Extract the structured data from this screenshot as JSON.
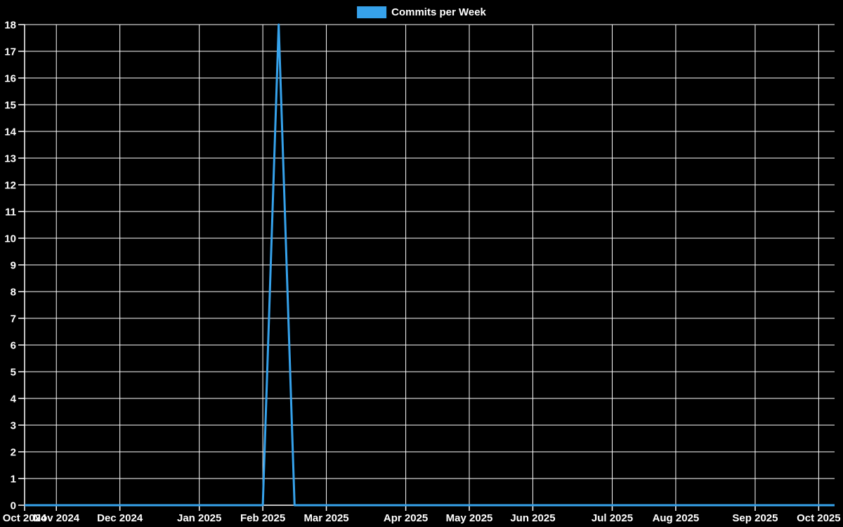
{
  "page": {
    "background_color": "#000000",
    "text_color": "#ffffff"
  },
  "legend": {
    "label": "Commits per Week",
    "swatch_color": "#36a2eb"
  },
  "chart_data": {
    "type": "line",
    "title": "Commits per Week",
    "legend_position": "top",
    "grid": true,
    "grid_color": "#ffffff",
    "axis_color": "#ffffff",
    "tick_label_color": "#ffffff",
    "background_color": "#000000",
    "xlabel": "",
    "ylabel": "",
    "y_axis": {
      "min": 0,
      "max": 18,
      "step": 1
    },
    "y_tick_labels": [
      "0",
      "1",
      "2",
      "3",
      "4",
      "5",
      "6",
      "7",
      "8",
      "9",
      "10",
      "11",
      "12",
      "13",
      "14",
      "15",
      "16",
      "17",
      "18"
    ],
    "x_ticks": [
      {
        "date": "2024-10-20",
        "label": "Oct 2024"
      },
      {
        "date": "2024-11-03",
        "label": "Nov 2024"
      },
      {
        "date": "2024-12-01",
        "label": "Dec 2024"
      },
      {
        "date": "2025-01-05",
        "label": "Jan 2025"
      },
      {
        "date": "2025-02-02",
        "label": "Feb 2025"
      },
      {
        "date": "2025-03-02",
        "label": "Mar 2025"
      },
      {
        "date": "2025-04-06",
        "label": "Apr 2025"
      },
      {
        "date": "2025-05-04",
        "label": "May 2025"
      },
      {
        "date": "2025-06-01",
        "label": "Jun 2025"
      },
      {
        "date": "2025-07-06",
        "label": "Jul 2025"
      },
      {
        "date": "2025-08-03",
        "label": "Aug 2025"
      },
      {
        "date": "2025-09-07",
        "label": "Sep 2025"
      },
      {
        "date": "2025-10-05",
        "label": "Oct 2025"
      }
    ],
    "series": [
      {
        "name": "Commits per Week",
        "color": "#36a2eb",
        "line_width": 3,
        "fill": false,
        "start_date": "2024-10-20",
        "end_date": "2025-10-12",
        "interval_days": 7,
        "peak": {
          "date": "2025-02-09",
          "value": 18
        },
        "values": [
          0,
          0,
          0,
          0,
          0,
          0,
          0,
          0,
          0,
          0,
          0,
          0,
          0,
          0,
          0,
          0,
          18,
          0,
          0,
          0,
          0,
          0,
          0,
          0,
          0,
          0,
          0,
          0,
          0,
          0,
          0,
          0,
          0,
          0,
          0,
          0,
          0,
          0,
          0,
          0,
          0,
          0,
          0,
          0,
          0,
          0,
          0,
          0,
          0,
          0,
          0,
          0
        ]
      }
    ]
  }
}
